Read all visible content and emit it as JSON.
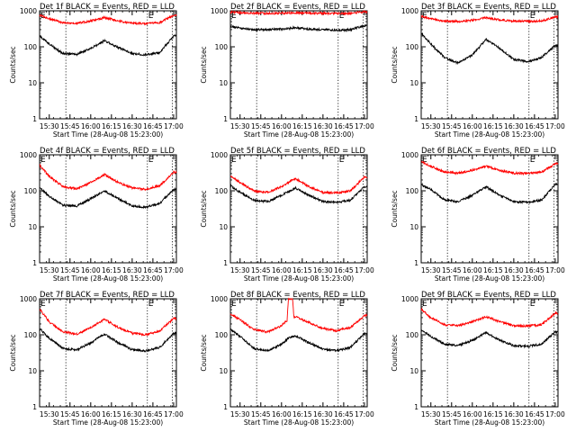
{
  "chart_data": {
    "type": "line",
    "yscale": "log",
    "ylim": [
      1,
      1000
    ],
    "yticks": [
      "1",
      "10",
      "100",
      "1000"
    ],
    "xlim": [
      "15:23",
      "17:02"
    ],
    "xticks": [
      "15:30",
      "15:45",
      "16:00",
      "16:15",
      "16:30",
      "16:45",
      "17:00"
    ],
    "xlabel": "Start Time (28-Aug-08 15:23:00)",
    "ylabel": "Counts/sec",
    "grid": false,
    "event_markers": [
      {
        "time": "15:23",
        "label": "E",
        "style": "dotted"
      },
      {
        "time": "15:42",
        "label": "",
        "style": "dotted"
      },
      {
        "time": "16:41",
        "label": "E",
        "style": "dotted"
      },
      {
        "time": "16:59",
        "label": "",
        "style": "dotted"
      }
    ],
    "panels": [
      {
        "title": "Det 1f BLACK = Events, RED = LLD",
        "series": [
          {
            "name": "Events",
            "color": "#000000",
            "x": [
              "15:23",
              "15:30",
              "15:40",
              "15:50",
              "16:00",
              "16:10",
              "16:20",
              "16:30",
              "16:40",
              "16:50",
              "17:00"
            ],
            "y": [
              200,
              120,
              65,
              62,
              90,
              150,
              95,
              65,
              60,
              70,
              200
            ]
          },
          {
            "name": "LLD",
            "color": "#ff0000",
            "x": [
              "15:23",
              "15:30",
              "15:40",
              "15:50",
              "16:00",
              "16:10",
              "16:20",
              "16:30",
              "16:40",
              "16:50",
              "17:00"
            ],
            "y": [
              750,
              600,
              470,
              450,
              520,
              650,
              520,
              450,
              440,
              470,
              750
            ]
          }
        ]
      },
      {
        "title": "Det 2f BLACK = Events, RED = LLD",
        "series": [
          {
            "name": "Events",
            "color": "#000000",
            "x": [
              "15:23",
              "15:30",
              "15:40",
              "15:50",
              "16:00",
              "16:10",
              "16:20",
              "16:30",
              "16:40",
              "16:50",
              "17:00"
            ],
            "y": [
              370,
              330,
              300,
              300,
              310,
              340,
              310,
              300,
              290,
              300,
              390
            ]
          },
          {
            "name": "LLD",
            "color": "#ff0000",
            "x": [
              "15:23",
              "15:30",
              "15:40",
              "15:50",
              "16:00",
              "16:10",
              "16:20",
              "16:30",
              "16:40",
              "16:50",
              "17:00"
            ],
            "y": [
              920,
              880,
              860,
              850,
              860,
              880,
              860,
              850,
              840,
              850,
              930
            ]
          }
        ]
      },
      {
        "title": "Det 3f BLACK = Events, RED = LLD",
        "series": [
          {
            "name": "Events",
            "color": "#000000",
            "x": [
              "15:23",
              "15:30",
              "15:40",
              "15:50",
              "16:00",
              "16:10",
              "16:20",
              "16:30",
              "16:40",
              "16:50",
              "17:00"
            ],
            "y": [
              240,
              120,
              50,
              35,
              60,
              160,
              90,
              45,
              38,
              50,
              110
            ]
          },
          {
            "name": "LLD",
            "color": "#ff0000",
            "x": [
              "15:23",
              "15:30",
              "15:40",
              "15:50",
              "16:00",
              "16:10",
              "16:20",
              "16:30",
              "16:40",
              "16:50",
              "17:00"
            ],
            "y": [
              700,
              600,
              520,
              500,
              540,
              640,
              560,
              520,
              510,
              520,
              680
            ]
          }
        ]
      },
      {
        "title": "Det 4f BLACK = Events, RED = LLD",
        "series": [
          {
            "name": "Events",
            "color": "#000000",
            "x": [
              "15:23",
              "15:30",
              "15:40",
              "15:50",
              "16:00",
              "16:10",
              "16:20",
              "16:30",
              "16:40",
              "16:50",
              "17:00"
            ],
            "y": [
              120,
              70,
              40,
              38,
              60,
              100,
              60,
              38,
              35,
              45,
              110
            ]
          },
          {
            "name": "LLD",
            "color": "#ff0000",
            "x": [
              "15:23",
              "15:30",
              "15:40",
              "15:50",
              "16:00",
              "16:10",
              "16:20",
              "16:30",
              "16:40",
              "16:50",
              "17:00"
            ],
            "y": [
              520,
              250,
              130,
              115,
              170,
              280,
              170,
              120,
              110,
              140,
              330
            ]
          }
        ]
      },
      {
        "title": "Det 5f BLACK = Events, RED = LLD",
        "series": [
          {
            "name": "Events",
            "color": "#000000",
            "x": [
              "15:23",
              "15:30",
              "15:40",
              "15:50",
              "16:00",
              "16:10",
              "16:20",
              "16:30",
              "16:40",
              "16:50",
              "17:00"
            ],
            "y": [
              140,
              90,
              55,
              50,
              75,
              120,
              75,
              50,
              48,
              55,
              130
            ]
          },
          {
            "name": "LLD",
            "color": "#ff0000",
            "x": [
              "15:23",
              "15:30",
              "15:40",
              "15:50",
              "16:00",
              "16:10",
              "16:20",
              "16:30",
              "16:40",
              "16:50",
              "17:00"
            ],
            "y": [
              260,
              170,
              100,
              90,
              130,
              220,
              130,
              90,
              88,
              100,
              240
            ]
          }
        ]
      },
      {
        "title": "Det 6f BLACK = Events, RED = LLD",
        "series": [
          {
            "name": "Events",
            "color": "#000000",
            "x": [
              "15:23",
              "15:30",
              "15:40",
              "15:50",
              "16:00",
              "16:10",
              "16:20",
              "16:30",
              "16:40",
              "16:50",
              "17:00"
            ],
            "y": [
              150,
              110,
              55,
              50,
              75,
              130,
              75,
              50,
              48,
              55,
              150
            ]
          },
          {
            "name": "LLD",
            "color": "#ff0000",
            "x": [
              "15:23",
              "15:30",
              "15:40",
              "15:50",
              "16:00",
              "16:10",
              "16:20",
              "16:30",
              "16:40",
              "16:50",
              "17:00"
            ],
            "y": [
              650,
              480,
              330,
              310,
              370,
              480,
              370,
              310,
              300,
              330,
              560
            ]
          }
        ]
      },
      {
        "title": "Det 7f BLACK = Events, RED = LLD",
        "series": [
          {
            "name": "Events",
            "color": "#000000",
            "x": [
              "15:23",
              "15:30",
              "15:40",
              "15:50",
              "16:00",
              "16:10",
              "16:20",
              "16:30",
              "16:40",
              "16:50",
              "17:00"
            ],
            "y": [
              150,
              80,
              42,
              38,
              60,
              105,
              60,
              38,
              36,
              45,
              110
            ]
          },
          {
            "name": "LLD",
            "color": "#ff0000",
            "x": [
              "15:23",
              "15:30",
              "15:40",
              "15:50",
              "16:00",
              "16:10",
              "16:20",
              "16:30",
              "16:40",
              "16:50",
              "17:00"
            ],
            "y": [
              520,
              230,
              120,
              105,
              160,
              270,
              160,
              110,
              100,
              130,
              280
            ]
          }
        ]
      },
      {
        "title": "Det 8f BLACK = Events, RED = LLD",
        "series": [
          {
            "name": "Events",
            "color": "#000000",
            "x": [
              "15:23",
              "15:30",
              "15:40",
              "15:50",
              "16:00",
              "16:05",
              "16:10",
              "16:20",
              "16:30",
              "16:40",
              "16:50",
              "17:00"
            ],
            "y": [
              140,
              90,
              42,
              36,
              55,
              80,
              95,
              60,
              40,
              36,
              45,
              110
            ]
          },
          {
            "name": "LLD",
            "color": "#ff0000",
            "x": [
              "15:23",
              "15:30",
              "15:40",
              "15:50",
              "16:00",
              "16:04",
              "16:05",
              "16:08",
              "16:09",
              "16:10",
              "16:20",
              "16:30",
              "16:40",
              "16:50",
              "17:00"
            ],
            "y": [
              380,
              260,
              140,
              120,
              180,
              250,
              1000,
              1000,
              300,
              320,
              220,
              150,
              130,
              160,
              340
            ]
          }
        ]
      },
      {
        "title": "Det 9f BLACK = Events, RED = LLD",
        "series": [
          {
            "name": "Events",
            "color": "#000000",
            "x": [
              "15:23",
              "15:30",
              "15:40",
              "15:50",
              "16:00",
              "16:10",
              "16:20",
              "16:30",
              "16:40",
              "16:50",
              "17:00"
            ],
            "y": [
              140,
              90,
              55,
              50,
              70,
              115,
              70,
              50,
              48,
              55,
              120
            ]
          },
          {
            "name": "LLD",
            "color": "#ff0000",
            "x": [
              "15:23",
              "15:30",
              "15:40",
              "15:50",
              "16:00",
              "16:10",
              "16:20",
              "16:30",
              "16:40",
              "16:50",
              "17:00"
            ],
            "y": [
              520,
              300,
              190,
              180,
              230,
              320,
              230,
              180,
              175,
              190,
              400
            ]
          }
        ]
      }
    ]
  }
}
